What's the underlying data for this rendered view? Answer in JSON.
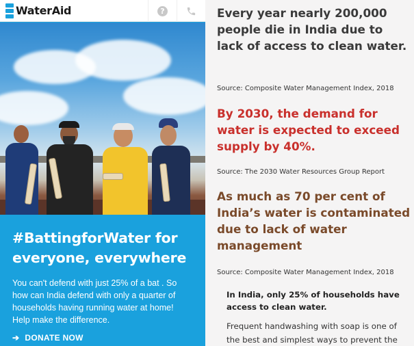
{
  "brand": {
    "name": "WaterAid"
  },
  "header": {
    "help_icon": "help-icon",
    "phone_icon": "phone-icon",
    "help_glyph": "?"
  },
  "campaign": {
    "headline": "#BattingforWater for everyone, everywhere",
    "intro": "You can't defend with just 25% of a bat . So how can India defend with only a quarter of households having running water at home! Help make the difference.",
    "donate_label": "DONATE NOW",
    "donate_arrow": "➔"
  },
  "facts": [
    {
      "text": "Every year nearly 200,000 people die in India due to lack of access to clean water.",
      "color": "#3a3a3a",
      "source": "Source: Composite Water Management Index, 2018"
    },
    {
      "text": "By 2030, the demand for water is expected to exceed supply by 40%.",
      "color": "#c9302c",
      "source": "Source: The 2030 Water Resources Group Report"
    },
    {
      "text": "As much as 70 per cent of India’s water is contaminated due to lack of water management",
      "color": "#7a4a2a",
      "source": "Source: Composite Water Management Index, 2018"
    }
  ],
  "callout": "In India, only 25% of households have access to clean water.",
  "body_text": "Frequent handwashing with soap is one of the best and simplest ways to prevent the",
  "colors": {
    "brand_blue": "#1aa1dd",
    "panel_bg": "#f5f4f4"
  }
}
